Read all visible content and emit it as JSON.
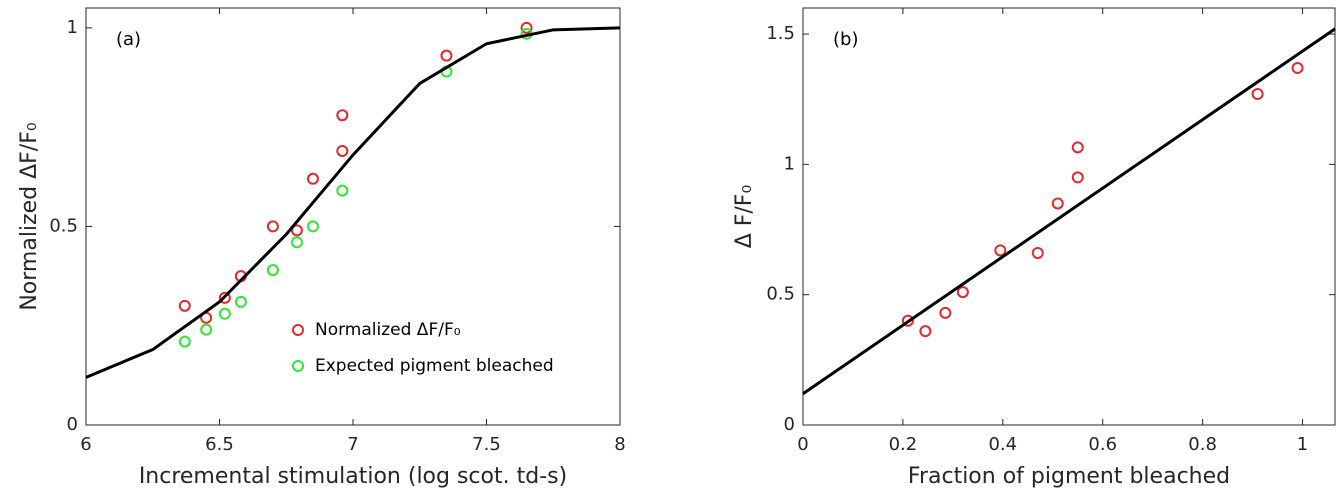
{
  "chart_data": [
    {
      "type": "scatter",
      "annotation": "(a)",
      "x_label": "Incremental stimulation (log scot. td-s)",
      "y_label": "Normalized ΔF/F₀",
      "xlim": [
        6,
        8
      ],
      "ylim": [
        0,
        1.05
      ],
      "xticks": [
        6,
        6.5,
        7,
        7.5,
        8
      ],
      "yticks": [
        0,
        0.5,
        1
      ],
      "legend": "lower right",
      "series": [
        {
          "name": "Normalized ΔF/F₀",
          "color": "#e8262b",
          "style": "markers",
          "x": [
            6.37,
            6.45,
            6.52,
            6.58,
            6.7,
            6.79,
            6.85,
            6.96,
            6.96,
            7.35,
            7.65
          ],
          "values": [
            0.3,
            0.27,
            0.32,
            0.375,
            0.5,
            0.49,
            0.62,
            0.69,
            0.78,
            0.93,
            1.0
          ]
        },
        {
          "name": "Expected pigment bleached",
          "color": "#2ee82e",
          "style": "markers",
          "x": [
            6.37,
            6.45,
            6.52,
            6.58,
            6.7,
            6.79,
            6.85,
            6.96,
            7.35,
            7.65
          ],
          "values": [
            0.21,
            0.24,
            0.28,
            0.31,
            0.39,
            0.46,
            0.5,
            0.59,
            0.89,
            0.985
          ]
        },
        {
          "color": "#000000",
          "style": "line",
          "x": [
            6,
            6.25,
            6.5,
            6.75,
            7,
            7.25,
            7.5,
            7.75,
            8
          ],
          "values": [
            0.12,
            0.19,
            0.31,
            0.48,
            0.68,
            0.86,
            0.96,
            0.995,
            1.0
          ]
        }
      ]
    },
    {
      "type": "scatter",
      "annotation": "(b)",
      "x_label": "Fraction of pigment bleached",
      "y_label": "Δ F/F₀",
      "xlim": [
        0,
        1.065
      ],
      "ylim": [
        0,
        1.6
      ],
      "xticks": [
        0,
        0.2,
        0.4,
        0.6,
        0.8,
        1
      ],
      "yticks": [
        0,
        0.5,
        1,
        1.5
      ],
      "series": [
        {
          "color": "#e8262b",
          "style": "markers",
          "x": [
            0.21,
            0.245,
            0.285,
            0.32,
            0.395,
            0.47,
            0.51,
            0.55,
            0.55,
            0.91,
            0.99
          ],
          "values": [
            0.4,
            0.36,
            0.43,
            0.51,
            0.67,
            0.66,
            0.85,
            0.95,
            1.065,
            1.27,
            1.37
          ]
        },
        {
          "color": "#000000",
          "style": "line",
          "x": [
            0,
            1.065
          ],
          "values": [
            0.12,
            1.52
          ]
        }
      ]
    }
  ]
}
